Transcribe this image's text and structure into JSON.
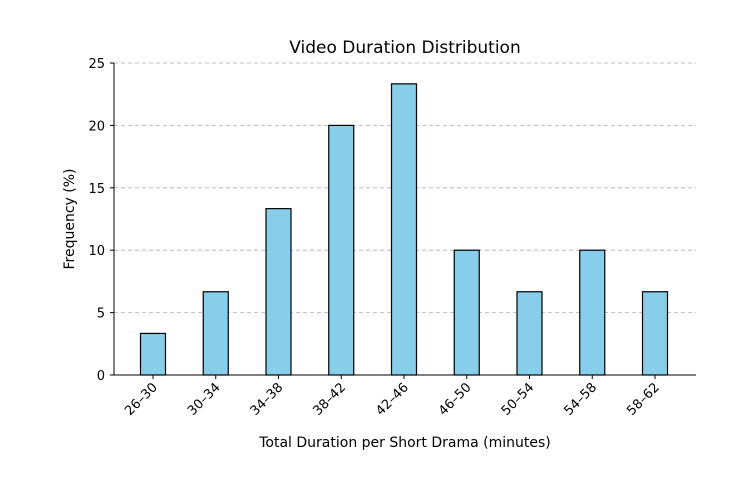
{
  "chart_data": {
    "type": "bar",
    "title": "Video Duration Distribution",
    "xlabel": "Total Duration per Short Drama (minutes)",
    "ylabel": "Frequency (%)",
    "categories": [
      "26–30",
      "30–34",
      "34–38",
      "38–42",
      "42–46",
      "46–50",
      "50–54",
      "54–58",
      "58–62"
    ],
    "values": [
      3.33,
      6.67,
      13.33,
      20.0,
      23.33,
      10.0,
      6.67,
      10.0,
      6.67
    ],
    "ylim": [
      0,
      25
    ],
    "yticks": [
      0,
      5,
      10,
      15,
      20,
      25
    ],
    "grid": "y-dashed",
    "bar_color": "#87ceeb",
    "edge_color": "#000000"
  }
}
